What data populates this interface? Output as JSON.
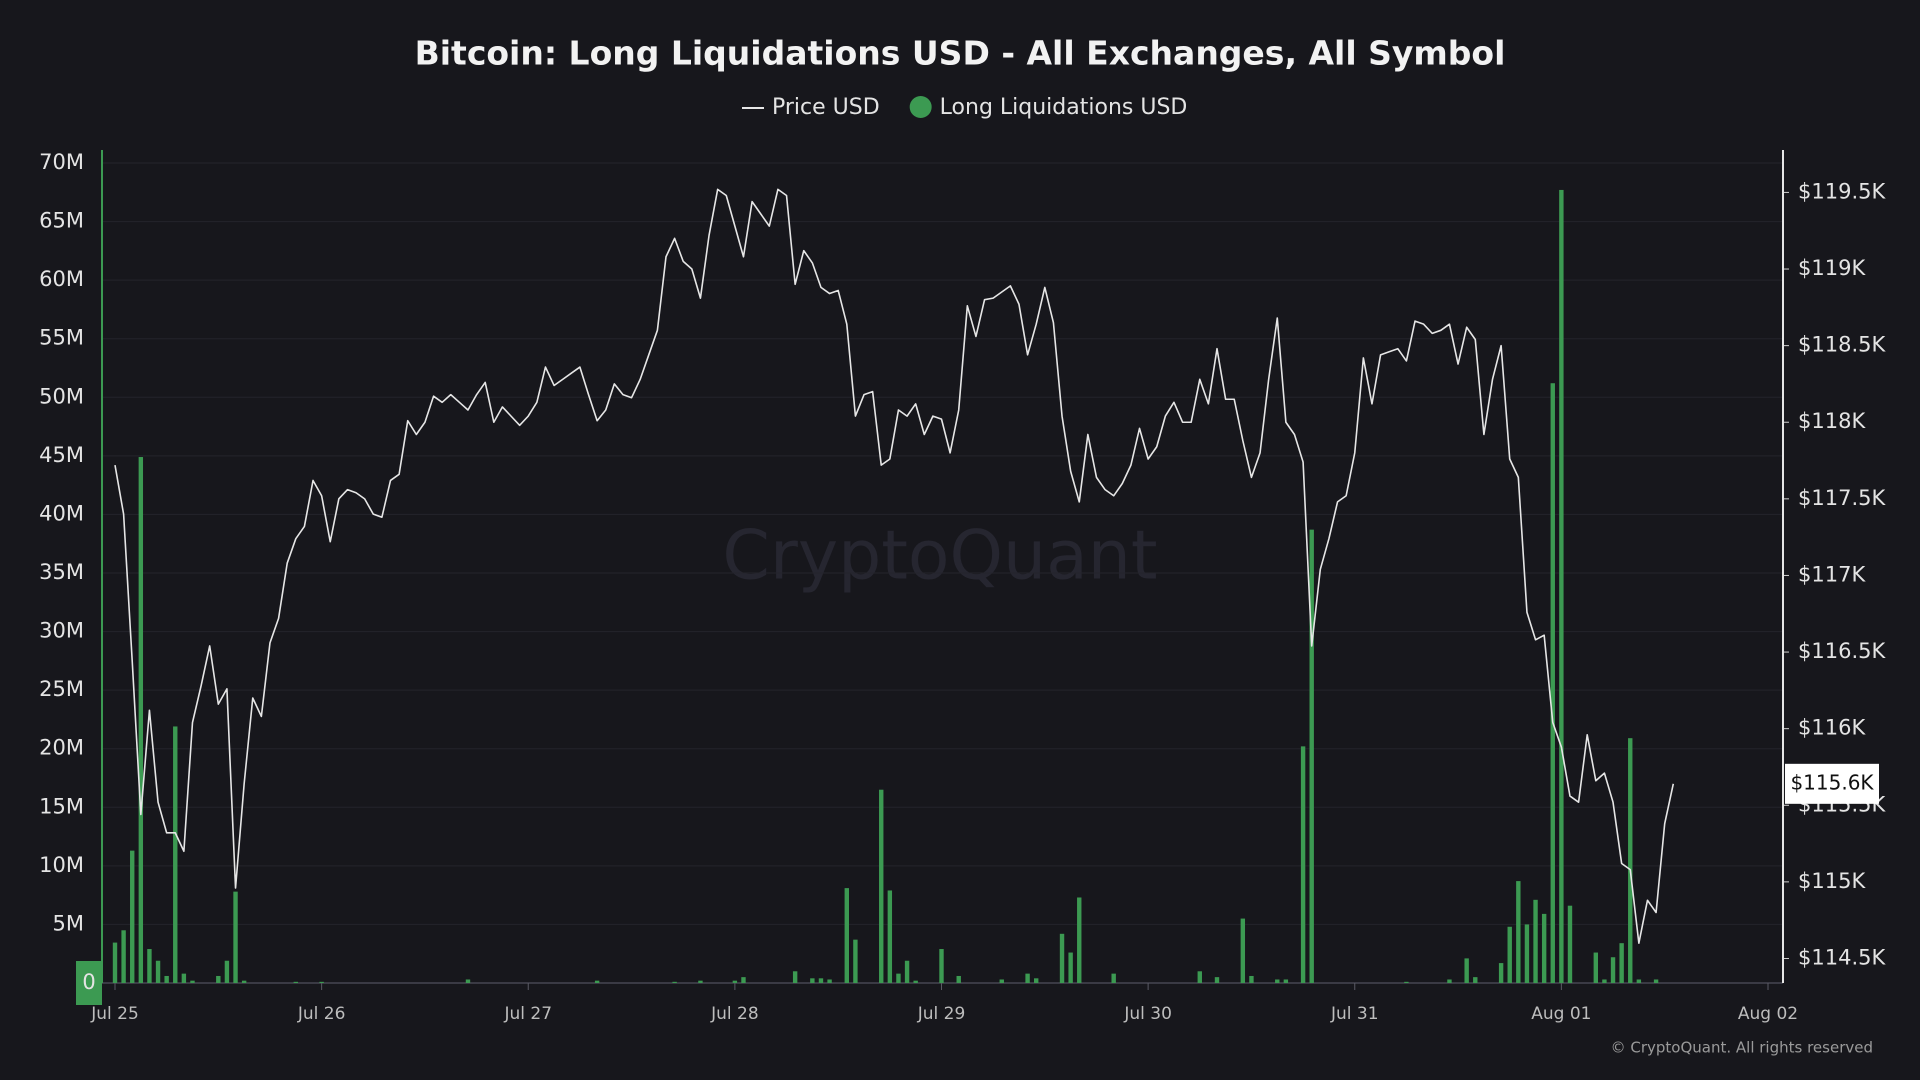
{
  "chart_data": {
    "type": "combo",
    "title": "Bitcoin: Long Liquidations USD - All Exchanges, All Symbol",
    "watermark": "CryptoQuant",
    "footer": "© CryptoQuant. All rights reserved",
    "current_price_label": "$115.6K",
    "grid": true,
    "legend": "top",
    "categories": [
      "Jul 25",
      null,
      null,
      null,
      null,
      null,
      null,
      null,
      null,
      null,
      null,
      null,
      null,
      null,
      null,
      null,
      null,
      null,
      null,
      null,
      null,
      null,
      null,
      null,
      "Jul 26",
      null,
      null,
      null,
      null,
      null,
      null,
      null,
      null,
      null,
      null,
      null,
      null,
      null,
      null,
      null,
      null,
      null,
      null,
      null,
      null,
      null,
      null,
      null,
      "Jul 27",
      null,
      null,
      null,
      null,
      null,
      null,
      null,
      null,
      null,
      null,
      null,
      null,
      null,
      null,
      null,
      null,
      null,
      null,
      null,
      null,
      null,
      null,
      null,
      "Jul 28",
      null,
      null,
      null,
      null,
      null,
      null,
      null,
      null,
      null,
      null,
      null,
      null,
      null,
      null,
      null,
      null,
      null,
      null,
      null,
      null,
      null,
      null,
      null,
      "Jul 29",
      null,
      null,
      null,
      null,
      null,
      null,
      null,
      null,
      null,
      null,
      null,
      null,
      null,
      null,
      null,
      null,
      null,
      null,
      null,
      null,
      null,
      null,
      null,
      "Jul 30",
      null,
      null,
      null,
      null,
      null,
      null,
      null,
      null,
      null,
      null,
      null,
      null,
      null,
      null,
      null,
      null,
      null,
      null,
      null,
      null,
      null,
      null,
      null,
      "Jul 31",
      null,
      null,
      null,
      null,
      null,
      null,
      null,
      null,
      null,
      null,
      null,
      null,
      null,
      null,
      null,
      null,
      null,
      null,
      null,
      null,
      null,
      null,
      null,
      "Aug 01",
      null,
      null,
      null,
      null,
      null,
      null,
      null,
      null,
      null,
      null,
      null,
      null,
      null,
      null,
      null,
      null,
      null,
      null,
      null,
      null,
      null,
      null,
      null,
      "Aug 02"
    ],
    "series": [
      {
        "name": "Price USD",
        "type": "line",
        "axis": "y2",
        "color": "#e6e6e6",
        "values": [
          117720,
          117400,
          116440,
          115440,
          116120,
          115520,
          115320,
          115320,
          115200,
          116040,
          116280,
          116540,
          116160,
          116260,
          114960,
          115640,
          116200,
          116080,
          116560,
          116720,
          117080,
          117240,
          117320,
          117620,
          117520,
          117220,
          117500,
          117560,
          117540,
          117500,
          117400,
          117380,
          117620,
          117660,
          118010,
          117920,
          118000,
          118170,
          118130,
          118180,
          118130,
          118080,
          118180,
          118260,
          118000,
          118100,
          118040,
          117980,
          118040,
          118130,
          118360,
          118240,
          118280,
          118320,
          118360,
          118180,
          118010,
          118080,
          118250,
          118180,
          118160,
          118280,
          118440,
          118600,
          119080,
          119200,
          119050,
          119000,
          118810,
          119220,
          119520,
          119480,
          119280,
          119080,
          119440,
          119360,
          119280,
          119520,
          119480,
          118900,
          119120,
          119040,
          118880,
          118840,
          118860,
          118640,
          118040,
          118180,
          118200,
          117720,
          117760,
          118080,
          118040,
          118120,
          117920,
          118040,
          118020,
          117800,
          118080,
          118760,
          118560,
          118800,
          118810,
          118850,
          118890,
          118770,
          118440,
          118640,
          118880,
          118650,
          118040,
          117680,
          117480,
          117920,
          117640,
          117560,
          117520,
          117600,
          117720,
          117960,
          117760,
          117840,
          118040,
          118130,
          118000,
          118000,
          118280,
          118120,
          118480,
          118150,
          118150,
          117880,
          117640,
          117800,
          118280,
          118680,
          118000,
          117920,
          117740,
          116540,
          117040,
          117240,
          117480,
          117520,
          117800,
          118420,
          118120,
          118440,
          118460,
          118480,
          118400,
          118660,
          118640,
          118580,
          118600,
          118640,
          118380,
          118620,
          118540,
          117920,
          118280,
          118500,
          117760,
          117640,
          116760,
          116580,
          116610,
          116040,
          115880,
          115560,
          115520,
          115960,
          115660,
          115710,
          115520,
          115120,
          115080,
          114600,
          114880,
          114800,
          115380,
          115640,
          null,
          null,
          null,
          null,
          null,
          null,
          null,
          null,
          null,
          null,
          null
        ]
      },
      {
        "name": "Long Liquidations USD",
        "type": "bar",
        "axis": "y",
        "color": "#3c9a52",
        "values": [
          3450000,
          4500000,
          11300000,
          44900000,
          2900000,
          1900000,
          600000,
          21900000,
          800000,
          200000,
          0,
          0,
          600000,
          1900000,
          7800000,
          200000,
          0,
          0,
          0,
          0,
          0,
          100000,
          0,
          0,
          100000,
          0,
          0,
          0,
          0,
          0,
          0,
          0,
          0,
          0,
          0,
          0,
          0,
          0,
          0,
          0,
          0,
          300000,
          0,
          0,
          0,
          0,
          0,
          0,
          0,
          0,
          0,
          0,
          0,
          0,
          0,
          0,
          200000,
          0,
          0,
          0,
          0,
          0,
          0,
          0,
          0,
          100000,
          0,
          0,
          200000,
          0,
          0,
          0,
          200000,
          500000,
          0,
          0,
          0,
          0,
          0,
          1000000,
          0,
          400000,
          400000,
          300000,
          0,
          8100000,
          3700000,
          0,
          0,
          16500000,
          7900000,
          800000,
          1900000,
          200000,
          0,
          0,
          2900000,
          0,
          600000,
          0,
          0,
          0,
          0,
          300000,
          0,
          0,
          800000,
          400000,
          0,
          0,
          4200000,
          2600000,
          7300000,
          0,
          0,
          0,
          800000,
          0,
          0,
          0,
          0,
          0,
          0,
          0,
          0,
          0,
          1000000,
          0,
          500000,
          0,
          0,
          5500000,
          600000,
          0,
          0,
          300000,
          300000,
          0,
          20200000,
          38700000,
          0,
          0,
          0,
          0,
          0,
          0,
          0,
          0,
          0,
          0,
          100000,
          0,
          0,
          0,
          0,
          300000,
          0,
          2100000,
          500000,
          0,
          0,
          1700000,
          4800000,
          8700000,
          5000000,
          7100000,
          5900000,
          51200000,
          67700000,
          6600000,
          0,
          0,
          2600000,
          300000,
          2200000,
          3400000,
          20900000,
          300000,
          0,
          300000,
          0,
          0,
          null,
          null,
          null,
          null,
          null,
          null,
          null,
          null,
          null,
          null,
          null
        ]
      }
    ],
    "ylim": [
      0,
      70000000
    ],
    "yticks": [
      0,
      {
        "value": 5000000,
        "label": "5M"
      },
      {
        "value": 10000000,
        "label": "10M"
      },
      {
        "value": 15000000,
        "label": "15M"
      },
      {
        "value": 20000000,
        "label": "20M"
      },
      {
        "value": 25000000,
        "label": "25M"
      },
      {
        "value": 30000000,
        "label": "30M"
      },
      {
        "value": 35000000,
        "label": "35M"
      },
      {
        "value": 40000000,
        "label": "40M"
      },
      {
        "value": 45000000,
        "label": "45M"
      },
      {
        "value": 50000000,
        "label": "50M"
      },
      {
        "value": 55000000,
        "label": "55M"
      },
      {
        "value": 60000000,
        "label": "60M"
      },
      {
        "value": 65000000,
        "label": "65M"
      },
      {
        "value": 70000000,
        "label": "70M"
      }
    ],
    "y2lim": [
      114340,
      119692
    ],
    "y2ticks": [
      {
        "value": 114500,
        "label": "$114.5K"
      },
      {
        "value": 115000,
        "label": "$115K"
      },
      {
        "value": 115500,
        "label": "$115.5K"
      },
      {
        "value": 116000,
        "label": "$116K"
      },
      {
        "value": 116500,
        "label": "$116.5K"
      },
      {
        "value": 117000,
        "label": "$117K"
      },
      {
        "value": 117500,
        "label": "$117.5K"
      },
      {
        "value": 118000,
        "label": "$118K"
      },
      {
        "value": 118500,
        "label": "$118.5K"
      },
      {
        "value": 119000,
        "label": "$119K"
      },
      {
        "value": 119500,
        "label": "$119.5K"
      }
    ]
  }
}
